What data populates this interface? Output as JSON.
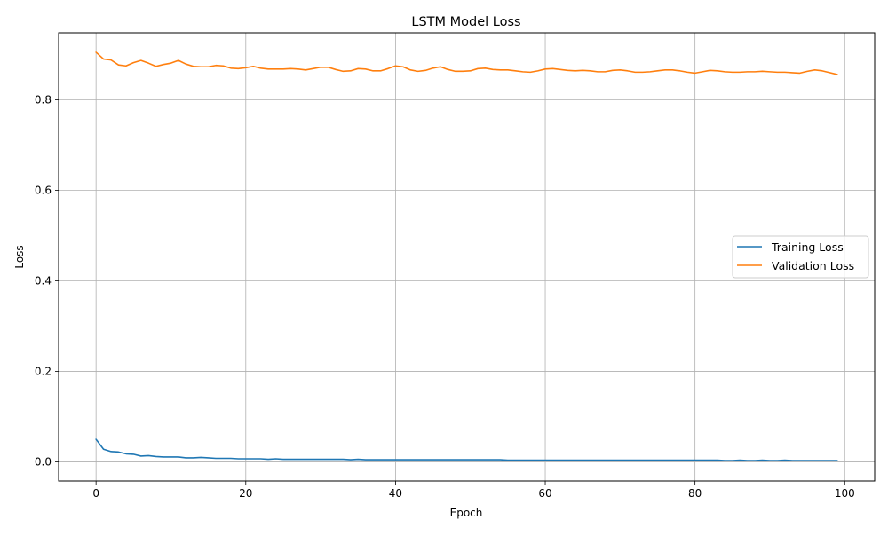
{
  "chart_data": {
    "type": "line",
    "title": "LSTM Model Loss",
    "xlabel": "Epoch",
    "ylabel": "Loss",
    "xlim": [
      -5,
      104
    ],
    "ylim": [
      -0.042,
      0.948
    ],
    "xticks": [
      0,
      20,
      40,
      60,
      80,
      100
    ],
    "yticks": [
      0.0,
      0.2,
      0.4,
      0.6,
      0.8
    ],
    "xtick_labels": [
      "0",
      "20",
      "40",
      "60",
      "80",
      "100"
    ],
    "ytick_labels": [
      "0.0",
      "0.2",
      "0.4",
      "0.6",
      "0.8"
    ],
    "grid": true,
    "legend_position": "center-right",
    "series": [
      {
        "name": "Training Loss",
        "color": "#1f77b4",
        "values": [
          0.05,
          0.028,
          0.023,
          0.022,
          0.018,
          0.017,
          0.013,
          0.014,
          0.012,
          0.011,
          0.011,
          0.011,
          0.009,
          0.009,
          0.01,
          0.009,
          0.008,
          0.008,
          0.008,
          0.007,
          0.007,
          0.007,
          0.007,
          0.006,
          0.007,
          0.006,
          0.006,
          0.006,
          0.006,
          0.006,
          0.006,
          0.006,
          0.006,
          0.006,
          0.005,
          0.006,
          0.005,
          0.005,
          0.005,
          0.005,
          0.005,
          0.005,
          0.005,
          0.005,
          0.005,
          0.005,
          0.005,
          0.005,
          0.005,
          0.005,
          0.005,
          0.005,
          0.005,
          0.005,
          0.005,
          0.004,
          0.004,
          0.004,
          0.004,
          0.004,
          0.004,
          0.004,
          0.004,
          0.004,
          0.004,
          0.004,
          0.004,
          0.004,
          0.004,
          0.004,
          0.004,
          0.004,
          0.004,
          0.004,
          0.004,
          0.004,
          0.004,
          0.004,
          0.004,
          0.004,
          0.004,
          0.004,
          0.004,
          0.004,
          0.003,
          0.003,
          0.004,
          0.003,
          0.003,
          0.004,
          0.003,
          0.003,
          0.004,
          0.003,
          0.003,
          0.003,
          0.003,
          0.003,
          0.003,
          0.003
        ]
      },
      {
        "name": "Validation Loss",
        "color": "#ff7f0e",
        "values": [
          0.905,
          0.89,
          0.888,
          0.877,
          0.875,
          0.882,
          0.887,
          0.881,
          0.874,
          0.878,
          0.881,
          0.887,
          0.879,
          0.874,
          0.873,
          0.873,
          0.876,
          0.875,
          0.87,
          0.869,
          0.871,
          0.874,
          0.87,
          0.868,
          0.868,
          0.868,
          0.869,
          0.868,
          0.866,
          0.869,
          0.872,
          0.872,
          0.867,
          0.863,
          0.864,
          0.869,
          0.868,
          0.864,
          0.864,
          0.869,
          0.875,
          0.873,
          0.866,
          0.863,
          0.865,
          0.87,
          0.873,
          0.867,
          0.863,
          0.863,
          0.864,
          0.869,
          0.87,
          0.867,
          0.866,
          0.866,
          0.864,
          0.862,
          0.861,
          0.864,
          0.868,
          0.869,
          0.867,
          0.865,
          0.864,
          0.865,
          0.864,
          0.862,
          0.862,
          0.865,
          0.866,
          0.864,
          0.861,
          0.861,
          0.862,
          0.864,
          0.866,
          0.866,
          0.864,
          0.861,
          0.859,
          0.862,
          0.865,
          0.864,
          0.862,
          0.861,
          0.861,
          0.862,
          0.862,
          0.863,
          0.862,
          0.861,
          0.861,
          0.86,
          0.859,
          0.863,
          0.866,
          0.864,
          0.86,
          0.856
        ]
      }
    ]
  }
}
